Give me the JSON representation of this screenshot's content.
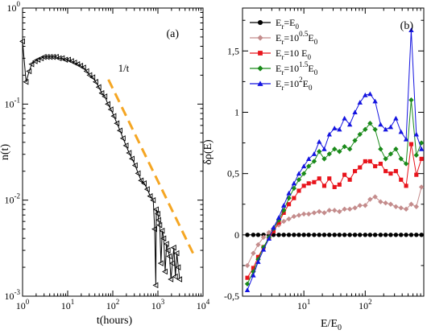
{
  "chart_data": [
    {
      "panel_label": "(a)",
      "type": "line",
      "xscale": "log",
      "yscale": "log",
      "xlabel": "t(hours)",
      "ylabel": "n(t)",
      "xlim": [
        1,
        10000
      ],
      "ylim": [
        0.001,
        1
      ],
      "xticks": [
        1,
        10,
        100,
        1000,
        10000
      ],
      "yticks": [
        0.001,
        0.01,
        0.1,
        1
      ],
      "xtick_labels": [
        {
          "base": "10",
          "exp": "0"
        },
        {
          "base": "10",
          "exp": "1"
        },
        {
          "base": "10",
          "exp": "2"
        },
        {
          "base": "10",
          "exp": "3"
        },
        {
          "base": "10",
          "exp": "4"
        }
      ],
      "ytick_labels": [
        {
          "base": "10",
          "exp": "-3"
        },
        {
          "base": "10",
          "exp": "-2"
        },
        {
          "base": "10",
          "exp": "-1"
        },
        {
          "base": "10",
          "exp": "0"
        }
      ],
      "grid": false,
      "colors": {
        "data": "#000000",
        "fit": "#f5a623"
      },
      "series": [
        {
          "marker": "triangle-left-open",
          "x": [
            1.0,
            1.2,
            1.4,
            1.6,
            1.9,
            2.2,
            2.6,
            3.0,
            3.5,
            4.1,
            4.8,
            5.6,
            6.5,
            7.6,
            8.9,
            10.4,
            12.2,
            14.2,
            16.6,
            19.4,
            22.6,
            26.4,
            30.8,
            36.0,
            42.0,
            49.0,
            57.2,
            66.8,
            78.0,
            91.0,
            106,
            124,
            145,
            169,
            197,
            230,
            268,
            313,
            365,
            426,
            497,
            580,
            676,
            789,
            850,
            900,
            920,
            1000,
            1040,
            1100,
            1170,
            1250,
            1350,
            1450,
            1560,
            1680,
            1810,
            1950,
            2100,
            2260,
            2440,
            2630,
            2830,
            3050
          ],
          "y": [
            0.45,
            0.17,
            0.22,
            0.26,
            0.28,
            0.29,
            0.3,
            0.31,
            0.31,
            0.31,
            0.31,
            0.31,
            0.3,
            0.3,
            0.29,
            0.29,
            0.28,
            0.27,
            0.26,
            0.25,
            0.24,
            0.22,
            0.2,
            0.19,
            0.17,
            0.15,
            0.13,
            0.12,
            0.1,
            0.088,
            0.075,
            0.063,
            0.053,
            0.044,
            0.037,
            0.031,
            0.027,
            0.023,
            0.019,
            0.016,
            0.015,
            0.013,
            0.011,
            0.01,
            0.005,
            0.0013,
            0.008,
            0.0072,
            0.0062,
            0.0055,
            0.0022,
            0.0048,
            0.004,
            0.0018,
            0.0035,
            0.003,
            0.0026,
            0.0015,
            0.0022,
            0.0032,
            0.0016,
            0.0028,
            0.002,
            0.0015
          ]
        }
      ],
      "fit": {
        "label": "1/t",
        "x": [
          80,
          6000
        ],
        "y": [
          0.18,
          0.0028
        ]
      }
    },
    {
      "panel_label": "(b)",
      "type": "line",
      "xscale": "log",
      "yscale": "linear",
      "xlabel": {
        "base": "E/E",
        "sub": "0"
      },
      "ylabel": "δρ(E)",
      "xlim": [
        1,
        900
      ],
      "ylim": [
        -0.5,
        1.85
      ],
      "xticks": [
        10,
        100
      ],
      "yticks": [
        -0.5,
        0,
        0.5,
        1,
        1.5
      ],
      "xtick_labels": [
        {
          "base": "10",
          "exp": "1"
        },
        {
          "base": "10",
          "exp": "2"
        }
      ],
      "ytick_labels": [
        "-0,5",
        "0",
        "0,5",
        "1",
        "1,5"
      ],
      "grid": false,
      "legend_position": "top-left",
      "x": [
        1.2,
        1.5,
        1.8,
        2.2,
        2.7,
        3.2,
        3.9,
        4.7,
        5.7,
        6.9,
        8.3,
        10,
        12,
        14.7,
        17.8,
        21.5,
        26,
        31.6,
        38,
        46,
        56,
        68,
        82,
        100,
        120,
        145,
        178,
        215,
        260,
        316,
        383,
        464,
        562,
        681,
        825
      ],
      "series": [
        {
          "legend": {
            "base": "E",
            "sub": "r",
            "rest": "=E",
            "rest_sub": "0"
          },
          "color": "#000000",
          "marker": "circle",
          "values": [
            0,
            0,
            0,
            0,
            0,
            0,
            0,
            0,
            0,
            0,
            0,
            0,
            0,
            0,
            0,
            0,
            0,
            0,
            0,
            0,
            0,
            0,
            0,
            0,
            0,
            0,
            0,
            0,
            0,
            0,
            0,
            0,
            0,
            0,
            0
          ]
        },
        {
          "legend": {
            "base": "E",
            "sub": "r",
            "rest": "=10",
            "rest_sup": "0.5",
            "rest2": "E",
            "rest2_sub": "0"
          },
          "color": "#c48c8c",
          "marker": "diamond",
          "values": [
            -0.25,
            -0.15,
            -0.08,
            -0.02,
            0.02,
            0.05,
            0.08,
            0.11,
            0.13,
            0.15,
            0.16,
            0.17,
            0.17,
            0.18,
            0.19,
            0.18,
            0.2,
            0.2,
            0.19,
            0.21,
            0.21,
            0.22,
            0.24,
            0.24,
            0.29,
            0.31,
            0.27,
            0.26,
            0.25,
            0.23,
            0.22,
            0.21,
            0.25,
            0.23,
            0.39
          ]
        },
        {
          "legend": {
            "base": "E",
            "sub": "r",
            "rest": "=10 E",
            "rest_sub": "0"
          },
          "color": "#e8141c",
          "marker": "square",
          "values": [
            -0.35,
            -0.27,
            -0.18,
            -0.1,
            -0.03,
            0.03,
            0.1,
            0.18,
            0.25,
            0.3,
            0.36,
            0.4,
            0.42,
            0.43,
            0.46,
            0.4,
            0.46,
            0.39,
            0.41,
            0.49,
            0.45,
            0.52,
            0.55,
            0.6,
            0.6,
            0.56,
            0.58,
            0.52,
            0.5,
            0.52,
            0.45,
            0.4,
            0.74,
            0.49,
            0.62
          ]
        },
        {
          "legend": {
            "base": "E",
            "sub": "r",
            "rest": "=10",
            "rest_sup": "1.5",
            "rest2": "E",
            "rest2_sub": "0"
          },
          "color": "#1a8a1a",
          "marker": "diamond",
          "values": [
            -0.4,
            -0.3,
            -0.2,
            -0.1,
            -0.02,
            0.05,
            0.12,
            0.2,
            0.3,
            0.38,
            0.45,
            0.5,
            0.56,
            0.6,
            0.68,
            0.62,
            0.66,
            0.7,
            0.68,
            0.72,
            0.7,
            0.77,
            0.82,
            0.86,
            0.91,
            0.86,
            0.7,
            0.62,
            0.66,
            0.7,
            0.62,
            0.58,
            1.1,
            0.65,
            0.75
          ]
        },
        {
          "legend": {
            "base": "E",
            "sub": "r",
            "rest": "=10",
            "rest_sup": "2",
            "rest2": "E",
            "rest2_sub": "0"
          },
          "color": "#1414e0",
          "marker": "triangle-up",
          "values": [
            -0.45,
            -0.33,
            -0.22,
            -0.12,
            -0.03,
            0.06,
            0.14,
            0.24,
            0.34,
            0.42,
            0.5,
            0.56,
            0.62,
            0.66,
            0.76,
            0.7,
            0.82,
            0.87,
            0.86,
            0.95,
            0.9,
            1.0,
            1.08,
            1.14,
            1.15,
            1.09,
            0.9,
            0.86,
            0.88,
            0.95,
            0.84,
            0.78,
            1.67,
            0.82,
            0.7
          ]
        }
      ]
    }
  ]
}
